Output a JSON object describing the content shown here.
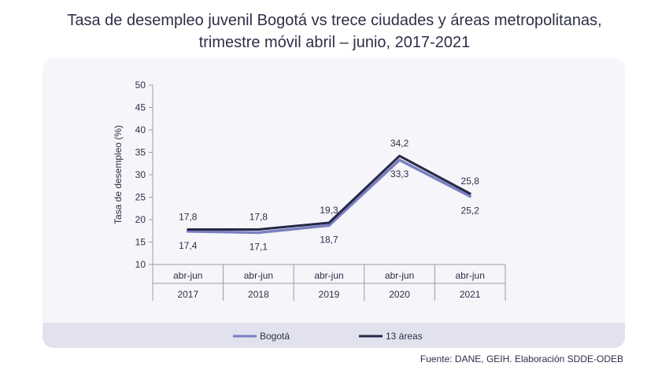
{
  "title_line1": "Tasa de desempleo juvenil Bogotá vs trece ciudades y áreas metropolitanas,",
  "title_line2": "trimestre móvil abril – junio, 2017-2021",
  "source": "Fuente: DANE, GEIH. Elaboración SDDE-ODEB",
  "colors": {
    "bogota": "#7b7fc0",
    "trece": "#242845",
    "axis": "#9a9aaa",
    "text": "#2e2f48"
  },
  "chart_data": {
    "type": "line",
    "title": "Tasa de desempleo juvenil Bogotá vs trece ciudades y áreas metropolitanas, trimestre móvil abril – junio, 2017-2021",
    "ylabel": "Tasa de desempleo (%)",
    "xlabel": "",
    "ylim": [
      10,
      50
    ],
    "yticks": [
      10,
      15,
      20,
      25,
      30,
      35,
      40,
      45,
      50
    ],
    "categories": [
      {
        "period": "abr-jun",
        "year": "2017"
      },
      {
        "period": "abr-jun",
        "year": "2018"
      },
      {
        "period": "abr-jun",
        "year": "2019"
      },
      {
        "period": "abr-jun",
        "year": "2020"
      },
      {
        "period": "abr-jun",
        "year": "2021"
      }
    ],
    "series": [
      {
        "name": "Bogotá",
        "key": "bogota",
        "values": [
          17.4,
          17.1,
          18.7,
          33.3,
          25.2
        ],
        "labels": [
          "17,4",
          "17,1",
          "18,7",
          "33,3",
          "25,2"
        ]
      },
      {
        "name": "13 áreas",
        "key": "trece",
        "values": [
          17.8,
          17.8,
          19.3,
          34.2,
          25.8
        ],
        "labels": [
          "17,8",
          "17,8",
          "19,3",
          "34,2",
          "25,8"
        ]
      }
    ],
    "legend": "bottom"
  }
}
